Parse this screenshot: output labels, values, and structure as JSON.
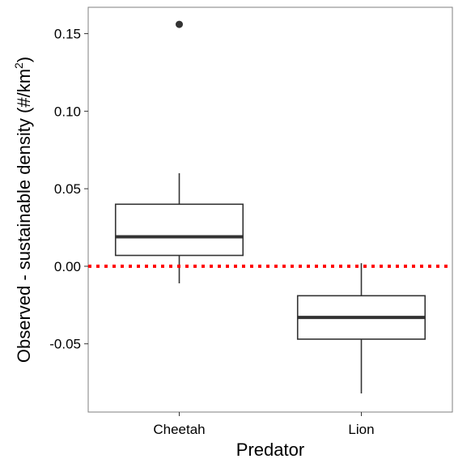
{
  "chart_data": {
    "type": "boxplot",
    "title": "",
    "xlabel": "Predator",
    "ylabel": "Observed - sustainable density (#/km",
    "ylabel_superscript": "2",
    "ylabel_close": ")",
    "categories": [
      "Cheetah",
      "Lion"
    ],
    "boxes": [
      {
        "category": "Cheetah",
        "whisker_low": -0.011,
        "q1": 0.007,
        "median": 0.019,
        "q3": 0.04,
        "whisker_high": 0.06,
        "outliers": [
          0.156
        ]
      },
      {
        "category": "Lion",
        "whisker_low": -0.082,
        "q1": -0.047,
        "median": -0.033,
        "q3": -0.019,
        "whisker_high": 0.002,
        "outliers": []
      }
    ],
    "yticks": [
      0.15,
      0.1,
      0.05,
      0.0,
      -0.05
    ],
    "ytick_labels": [
      "0.15",
      "0.10",
      "0.05",
      "0.00",
      "-0.05"
    ],
    "ylim": [
      -0.094,
      0.167
    ],
    "reference_line": {
      "y": 0.0,
      "color": "#ff0000",
      "style": "dotted"
    },
    "box_color": "#333333",
    "grid": false,
    "legend": "none"
  }
}
